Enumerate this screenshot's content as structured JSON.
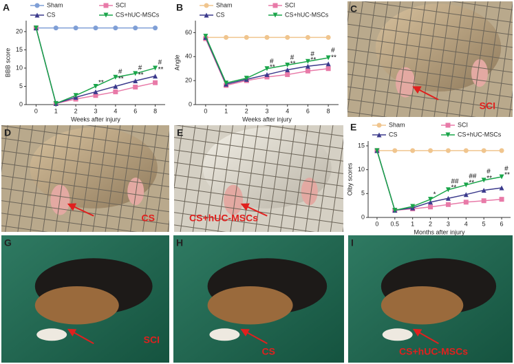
{
  "chart_data": [
    {
      "type": "line",
      "panel": "A",
      "x_label": "Weeks after injury",
      "y_label": "BBB score",
      "categories": [
        "0",
        "1",
        "2",
        "3",
        "4",
        "6",
        "8"
      ],
      "ylim": [
        0,
        23
      ],
      "yticks": [
        0,
        5,
        10,
        15,
        20
      ],
      "series": [
        {
          "name": "Sham",
          "color": "#7f9fd6",
          "marker": "circle",
          "values": [
            21,
            21,
            21,
            21,
            21,
            21,
            21
          ]
        },
        {
          "name": "SCI",
          "color": "#e87aa8",
          "marker": "square",
          "values": [
            21,
            0.3,
            1.5,
            2.5,
            3.5,
            4.8,
            6
          ]
        },
        {
          "name": "CS",
          "color": "#3b3a8c",
          "marker": "triangle-up",
          "values": [
            21,
            0.3,
            2,
            3.5,
            5,
            6.5,
            7.8
          ]
        },
        {
          "name": "CS+hUC-MSCs",
          "color": "#1aa54a",
          "marker": "triangle-down",
          "values": [
            21,
            0.3,
            2.5,
            5,
            7.5,
            8.5,
            10
          ]
        }
      ],
      "annotations": [
        {
          "x": "3",
          "y": 6,
          "text": "**"
        },
        {
          "x": "4",
          "y": 9,
          "text": "#"
        },
        {
          "x": "6",
          "y": 10,
          "text": "#"
        },
        {
          "x": "8",
          "y": 11.5,
          "text": "#"
        },
        {
          "x": "4",
          "y": 7,
          "text": "**"
        },
        {
          "x": "6",
          "y": 8,
          "text": "**"
        },
        {
          "x": "8",
          "y": 9.5,
          "text": "**"
        }
      ]
    },
    {
      "type": "line",
      "panel": "B",
      "x_label": "Weeks after injury",
      "y_label": "Angle",
      "categories": [
        "0",
        "1",
        "2",
        "3",
        "4",
        "6",
        "8"
      ],
      "ylim": [
        0,
        70
      ],
      "yticks": [
        0,
        20,
        40,
        60
      ],
      "series": [
        {
          "name": "Sham",
          "color": "#f0c58e",
          "marker": "circle",
          "values": [
            56,
            56,
            56,
            56,
            56,
            56,
            56
          ]
        },
        {
          "name": "SCI",
          "color": "#e87aa8",
          "marker": "square",
          "values": [
            55,
            16,
            20,
            23,
            25,
            28,
            30
          ]
        },
        {
          "name": "CS",
          "color": "#3b3a8c",
          "marker": "triangle-up",
          "values": [
            56,
            17,
            21,
            25,
            29,
            32,
            34
          ]
        },
        {
          "name": "CS+hUC-MSCs",
          "color": "#1aa54a",
          "marker": "triangle-down",
          "values": [
            57,
            18,
            22,
            30,
            33,
            36,
            39
          ]
        }
      ],
      "annotations": [
        {
          "x": "3",
          "y": 36,
          "text": "#"
        },
        {
          "x": "4",
          "y": 39,
          "text": "#"
        },
        {
          "x": "6",
          "y": 42,
          "text": "#"
        },
        {
          "x": "8",
          "y": 45,
          "text": "#"
        },
        {
          "x": "3",
          "y": 31,
          "text": "**"
        },
        {
          "x": "4",
          "y": 34,
          "text": "**"
        },
        {
          "x": "6",
          "y": 37,
          "text": "**"
        },
        {
          "x": "8",
          "y": 39,
          "text": "**"
        }
      ]
    },
    {
      "type": "line",
      "panel": "E",
      "x_label": "Months after injury",
      "y_label": "Olby scores",
      "categories": [
        "0",
        "0.5",
        "1",
        "2",
        "3",
        "4",
        "5",
        "6"
      ],
      "ylim": [
        0,
        16
      ],
      "yticks": [
        0,
        5,
        10,
        15
      ],
      "series": [
        {
          "name": "Sham",
          "color": "#f0c58e",
          "marker": "circle",
          "values": [
            14,
            14,
            14,
            14,
            14,
            14,
            14,
            14
          ]
        },
        {
          "name": "SCI",
          "color": "#e87aa8",
          "marker": "square",
          "values": [
            14,
            1.5,
            1.8,
            2.2,
            2.7,
            3.2,
            3.5,
            3.8
          ]
        },
        {
          "name": "CS",
          "color": "#3b3a8c",
          "marker": "triangle-up",
          "values": [
            14,
            1.5,
            2,
            3.2,
            4,
            4.8,
            5.7,
            6.2
          ]
        },
        {
          "name": "CS+hUC-MSCs",
          "color": "#1aa54a",
          "marker": "triangle-down",
          "values": [
            14,
            1.5,
            2.3,
            3.8,
            5.8,
            6.8,
            7.8,
            8.5
          ]
        }
      ],
      "annotations": [
        {
          "x": "2",
          "y": 4.8,
          "text": "*"
        },
        {
          "x": "3",
          "y": 7.5,
          "text": "##"
        },
        {
          "x": "4",
          "y": 8.6,
          "text": "##"
        },
        {
          "x": "5",
          "y": 9.6,
          "text": "#"
        },
        {
          "x": "6",
          "y": 10.2,
          "text": "#"
        },
        {
          "x": "3",
          "y": 6.2,
          "text": "**"
        },
        {
          "x": "4",
          "y": 7.2,
          "text": "**"
        },
        {
          "x": "5",
          "y": 8.2,
          "text": "**"
        },
        {
          "x": "6",
          "y": 8.9,
          "text": "**"
        }
      ]
    }
  ],
  "photos": [
    {
      "panel": "C",
      "label": "SCI"
    },
    {
      "panel": "D",
      "label": "CS"
    },
    {
      "panel": "E",
      "label": "CS+hUC-MSCs"
    },
    {
      "panel": "G",
      "label": "SCI"
    },
    {
      "panel": "H",
      "label": "CS"
    },
    {
      "panel": "I",
      "label": "CS+hUC-MSCs"
    }
  ]
}
